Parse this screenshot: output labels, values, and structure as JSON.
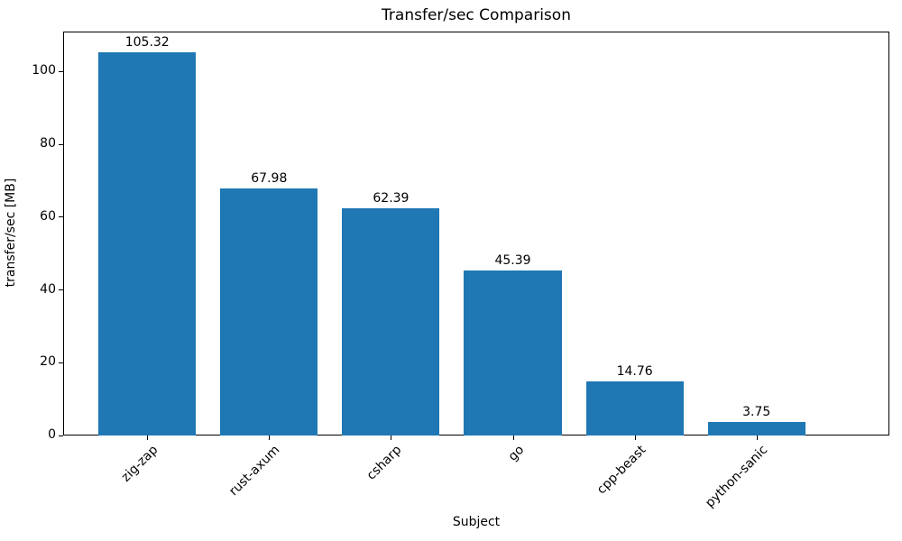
{
  "chart_data": {
    "type": "bar",
    "title": "Transfer/sec Comparison",
    "xlabel": "Subject",
    "ylabel": "transfer/sec [MB]",
    "categories": [
      "zig-zap",
      "rust-axum",
      "csharp",
      "go",
      "cpp-beast",
      "python-sanic"
    ],
    "values": [
      105.32,
      67.98,
      62.39,
      45.39,
      14.76,
      3.75
    ],
    "bar_labels": [
      "105.32",
      "67.98",
      "62.39",
      "45.39",
      "14.76",
      "3.75"
    ],
    "yticks": [
      0,
      20,
      40,
      60,
      80,
      100
    ],
    "ylim": [
      0,
      111
    ],
    "bar_color": "#1f77b4",
    "text_color": "#000000",
    "background_color": "#ffffff",
    "grid": false,
    "legend_position": "none",
    "x_tick_rotation_deg": 45,
    "bar_width_fraction": 0.8
  }
}
